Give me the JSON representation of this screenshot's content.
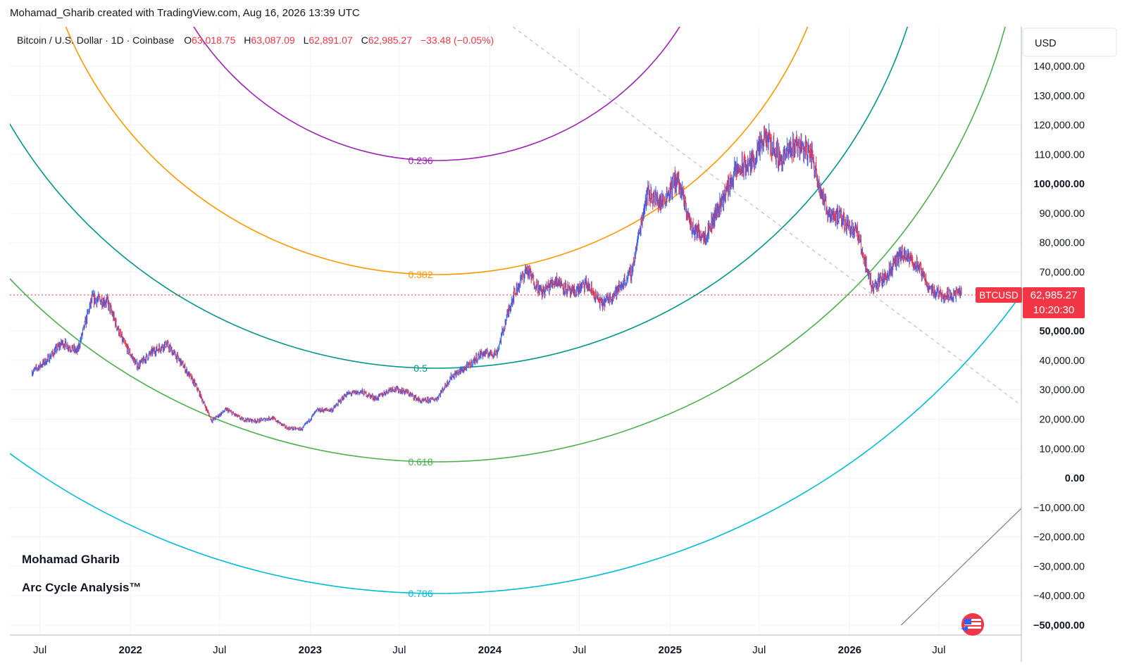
{
  "header": {
    "attribution": "Mohamad_Gharib created with TradingView.com, Aug 16, 2026 13:39 UTC"
  },
  "legend": {
    "symbol": "Bitcoin / U.S. Dollar · 1D · Coinbase",
    "open_label": "O",
    "open": "63,018.75",
    "high_label": "H",
    "high": "63,087.09",
    "low_label": "L",
    "low": "62,891.07",
    "close_label": "C",
    "close": "62,985.27",
    "change": "−33.48 (−0.05%)"
  },
  "price_axis": {
    "currency": "USD",
    "ticks": [
      "140,000.00",
      "130,000.00",
      "120,000.00",
      "110,000.00",
      "100,000.00",
      "90,000.00",
      "80,000.00",
      "70,000.00",
      "60,000.00",
      "50,000.00",
      "40,000.00",
      "30,000.00",
      "20,000.00",
      "10,000.00",
      "0.00",
      "−10,000.00",
      "−20,000.00",
      "−30,000.00",
      "−40,000.00",
      "−50,000.00"
    ],
    "bold_ticks": [
      "100,000.00",
      "50,000.00",
      "0.00",
      "−50,000.00"
    ]
  },
  "time_axis": {
    "labels": [
      "Jul",
      "2022",
      "Jul",
      "2023",
      "Jul",
      "2024",
      "Jul",
      "2025",
      "Jul",
      "2026",
      "Jul"
    ],
    "bold_labels": [
      "2022",
      "2023",
      "2024",
      "2025",
      "2026"
    ]
  },
  "price_badge": {
    "symbol": "BTCUSD",
    "price": "62,985.27",
    "countdown": "10:20:30"
  },
  "fib_arcs": [
    {
      "level": "0.236",
      "color": "#9c27b0"
    },
    {
      "level": "0.382",
      "color": "#ff9800"
    },
    {
      "level": "0.5",
      "color": "#009688"
    },
    {
      "level": "0.618",
      "color": "#4caf50"
    },
    {
      "level": "0.786",
      "color": "#00bcd4"
    }
  ],
  "watermark": {
    "author": "Mohamad Gharib",
    "title": "Arc Cycle Analysis™"
  },
  "colors": {
    "up": "#2962ff",
    "down": "#f23645",
    "accent": "#f23645",
    "grid": "#f0f3fa"
  },
  "chart_data": {
    "type": "line",
    "title": "Bitcoin / U.S. Dollar · 1D · Coinbase",
    "xlabel": "",
    "ylabel": "USD",
    "ylim": [
      -50000,
      140000
    ],
    "x": [
      "2021-06",
      "2021-07",
      "2021-08",
      "2021-09",
      "2021-10",
      "2021-11",
      "2021-12",
      "2022-01",
      "2022-02",
      "2022-03",
      "2022-04",
      "2022-05",
      "2022-06",
      "2022-07",
      "2022-08",
      "2022-09",
      "2022-10",
      "2022-11",
      "2022-12",
      "2023-01",
      "2023-02",
      "2023-03",
      "2023-04",
      "2023-05",
      "2023-06",
      "2023-07",
      "2023-08",
      "2023-09",
      "2023-10",
      "2023-11",
      "2023-12",
      "2024-01",
      "2024-02",
      "2024-03",
      "2024-04",
      "2024-05",
      "2024-06",
      "2024-07",
      "2024-08",
      "2024-09",
      "2024-10",
      "2024-11",
      "2024-12",
      "2025-01",
      "2025-02",
      "2025-03",
      "2025-04",
      "2025-05",
      "2025-06",
      "2025-07",
      "2025-08",
      "2025-09",
      "2025-10",
      "2025-11",
      "2025-12",
      "2026-01",
      "2026-02",
      "2026-03",
      "2026-04",
      "2026-05",
      "2026-06",
      "2026-07",
      "2026-08"
    ],
    "series": [
      {
        "name": "BTCUSD",
        "values": [
          36000,
          40000,
          46000,
          43000,
          61000,
          60000,
          47000,
          38000,
          43000,
          45500,
          39000,
          31000,
          19500,
          23300,
          20000,
          19400,
          20500,
          17000,
          16600,
          23000,
          23200,
          28500,
          29300,
          27000,
          30500,
          29300,
          26000,
          27000,
          34500,
          37700,
          42300,
          42500,
          61000,
          71000,
          63000,
          67500,
          62700,
          66000,
          59000,
          63500,
          70000,
          97000,
          93500,
          102000,
          84500,
          82500,
          94000,
          104500,
          107000,
          115800,
          108200,
          114000,
          110000,
          91000,
          88000,
          84000,
          65000,
          68500,
          76000,
          73000,
          64000,
          62000,
          62985
        ]
      }
    ]
  }
}
